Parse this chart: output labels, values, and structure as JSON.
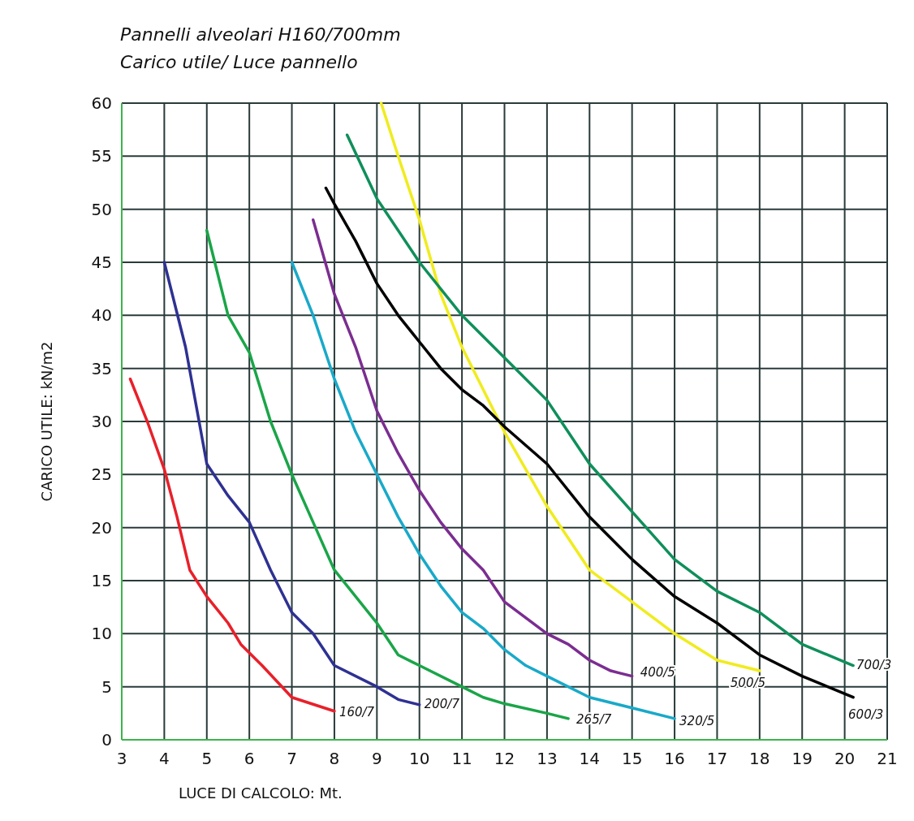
{
  "chart_data": {
    "type": "line",
    "title": "Pannelli alveolari H160/700mm",
    "subtitle": "Carico utile/ Luce pannello",
    "xlabel": "LUCE DI CALCOLO: Mt.",
    "ylabel": "CARICO UTILE: kN/m2",
    "xlim": [
      3,
      21
    ],
    "xticks": [
      3,
      4,
      5,
      6,
      7,
      8,
      9,
      10,
      11,
      12,
      13,
      14,
      15,
      16,
      17,
      18,
      19,
      20,
      21
    ],
    "ylim": [
      0,
      60
    ],
    "yticks": [
      0,
      5,
      10,
      15,
      20,
      25,
      30,
      35,
      40,
      45,
      50,
      55,
      60
    ],
    "grid": true,
    "marker": "none",
    "line_style": "solid",
    "series": [
      {
        "name": "160/7",
        "color": "#e8202a",
        "x": [
          3.2,
          3.6,
          4,
          4.3,
          4.6,
          5,
          5.3,
          5.5,
          5.8,
          6.3,
          7,
          8
        ],
        "values": [
          34,
          30,
          25.5,
          21,
          16,
          13.5,
          12,
          11,
          9,
          7,
          4,
          2.7
        ]
      },
      {
        "name": "200/7",
        "color": "#2e3192",
        "x": [
          4,
          4.5,
          5,
          5.5,
          6,
          6.5,
          7,
          7.5,
          8,
          9,
          9.5,
          10
        ],
        "values": [
          45,
          37,
          26,
          23,
          20.5,
          16,
          12,
          10,
          7,
          5,
          3.8,
          3.3
        ]
      },
      {
        "name": "265/7",
        "color": "#1aa548",
        "x": [
          5,
          5.5,
          6,
          6.5,
          7,
          7.5,
          8,
          9,
          9.5,
          10,
          11,
          11.5,
          12,
          13,
          13.5
        ],
        "values": [
          48,
          40,
          36.5,
          30,
          25,
          20.5,
          16,
          11,
          8,
          7,
          5,
          4,
          3.4,
          2.5,
          2
        ]
      },
      {
        "name": "320/5",
        "color": "#19a9c9",
        "x": [
          7,
          7.5,
          8,
          8.5,
          9,
          9.5,
          10,
          10.5,
          11,
          11.5,
          12,
          12.5,
          13,
          14,
          15,
          16
        ],
        "values": [
          45,
          40,
          34,
          29,
          25,
          21,
          17.5,
          14.5,
          12,
          10.5,
          8.5,
          7,
          6,
          4,
          3,
          2
        ]
      },
      {
        "name": "400/5",
        "color": "#7b2d91",
        "x": [
          7.5,
          8,
          8.5,
          9,
          9.5,
          10,
          10.5,
          11,
          11.5,
          12,
          13,
          13.5,
          14,
          14.5,
          15
        ],
        "values": [
          49,
          42,
          37,
          31,
          27,
          23.5,
          20.5,
          18,
          16,
          13,
          10,
          9,
          7.5,
          6.5,
          6
        ]
      },
      {
        "name": "500/5",
        "color": "#f0ec1e",
        "x": [
          9.1,
          9.5,
          10,
          10.5,
          11,
          11.5,
          12,
          12.5,
          13,
          13.5,
          14,
          15,
          16,
          17,
          18
        ],
        "values": [
          60,
          55,
          49,
          42,
          37,
          33,
          29,
          25.5,
          22,
          19,
          16,
          13,
          10,
          7.5,
          6.5
        ]
      },
      {
        "name": "600/3",
        "color": "#000000",
        "x": [
          7.8,
          8,
          8.5,
          9,
          9.5,
          10,
          10.5,
          11,
          11.5,
          12,
          13,
          14,
          15,
          16,
          17,
          18,
          19,
          20.2
        ],
        "values": [
          52,
          50.5,
          47,
          43,
          40,
          37.5,
          35,
          33,
          31.5,
          29.5,
          26,
          21,
          17,
          13.5,
          11,
          8,
          6,
          4
        ]
      },
      {
        "name": "700/3",
        "color": "#0f8f5a",
        "x": [
          8.3,
          9,
          10,
          11,
          12,
          13,
          14,
          15,
          16,
          17,
          18,
          19,
          20.2
        ],
        "values": [
          57,
          51,
          45,
          40,
          36,
          32,
          26,
          21.5,
          17,
          14,
          12,
          9,
          7
        ]
      }
    ]
  }
}
